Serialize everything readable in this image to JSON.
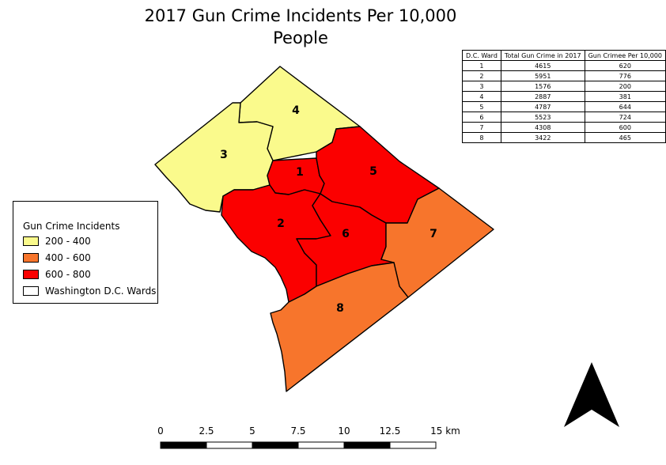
{
  "title": {
    "line1": "2017 Gun Crime Incidents Per 10,000",
    "line2": "People"
  },
  "colors": {
    "class_200_400": "#fafa8c",
    "class_400_600": "#f7752c",
    "class_600_800": "#fb0000",
    "outline": "#000000"
  },
  "wards": [
    {
      "label": "1",
      "class": "600 - 800"
    },
    {
      "label": "2",
      "class": "600 - 800"
    },
    {
      "label": "3",
      "class": "200 - 400"
    },
    {
      "label": "4",
      "class": "200 - 400"
    },
    {
      "label": "5",
      "class": "600 - 800"
    },
    {
      "label": "6",
      "class": "600 - 800"
    },
    {
      "label": "7",
      "class": "400 - 600"
    },
    {
      "label": "8",
      "class": "400 - 600"
    }
  ],
  "table": {
    "headers": [
      "D.C. Ward",
      "Total Gun Crime in 2017",
      "Gun Crimee Per 10,000"
    ],
    "rows": [
      [
        "1",
        "4615",
        "620"
      ],
      [
        "2",
        "5951",
        "776"
      ],
      [
        "3",
        "1576",
        "200"
      ],
      [
        "4",
        "2887",
        "381"
      ],
      [
        "5",
        "4787",
        "644"
      ],
      [
        "6",
        "5523",
        "724"
      ],
      [
        "7",
        "4308",
        "600"
      ],
      [
        "8",
        "3422",
        "465"
      ]
    ]
  },
  "legend": {
    "title": "Gun Crime Incidents",
    "items": [
      {
        "label": "200 - 400",
        "color": "#fafa8c"
      },
      {
        "label": "400 - 600",
        "color": "#f7752c"
      },
      {
        "label": "600 - 800",
        "color": "#fb0000"
      },
      {
        "label": "Washington D.C. Wards",
        "color": "#ffffff"
      }
    ]
  },
  "scale_bar": {
    "labels": [
      "0",
      "2.5",
      "5",
      "7.5",
      "10",
      "12.5",
      "15 km"
    ]
  },
  "north_arrow": {
    "icon": "north-arrow-icon"
  }
}
